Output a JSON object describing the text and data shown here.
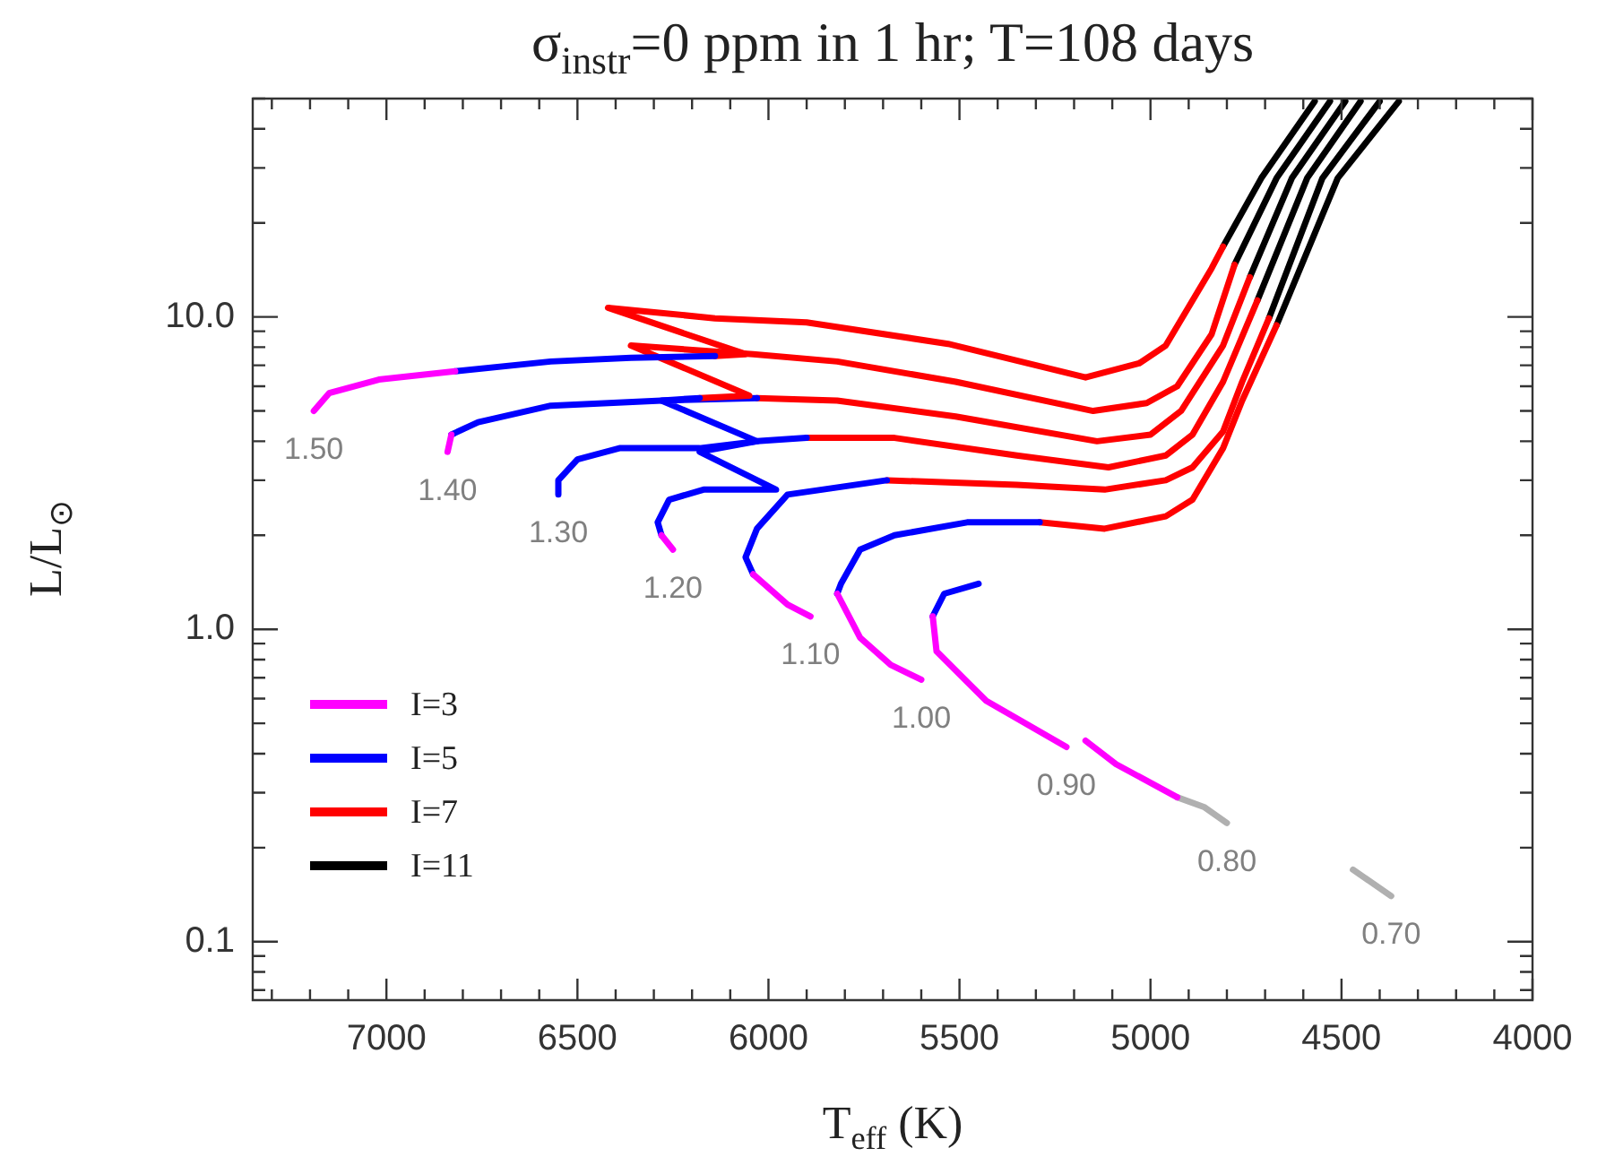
{
  "chart_data": {
    "type": "line",
    "title": "σ$_{instr}$=0 ppm in 1 hr; T=108 days",
    "xlabel": "T$_{eff}$ (K)",
    "ylabel": "L/L$_{⊙}$",
    "log": "y",
    "marker": "none",
    "legend": "bottom left",
    "xlim": [
      7350,
      4000
    ],
    "ylim": [
      0.065,
      50
    ],
    "xticks": [
      {
        "value": 7300,
        "label": null
      },
      {
        "value": 7200,
        "label": null
      },
      {
        "value": 7100,
        "label": null
      },
      7000,
      {
        "value": 6900,
        "label": null
      },
      {
        "value": 6800,
        "label": null
      },
      {
        "value": 6700,
        "label": null
      },
      {
        "value": 6600,
        "label": null
      },
      6500,
      {
        "value": 6400,
        "label": null
      },
      {
        "value": 6300,
        "label": null
      },
      {
        "value": 6200,
        "label": null
      },
      {
        "value": 6100,
        "label": null
      },
      6000,
      {
        "value": 5900,
        "label": null
      },
      {
        "value": 5800,
        "label": null
      },
      {
        "value": 5700,
        "label": null
      },
      {
        "value": 5600,
        "label": null
      },
      5500,
      {
        "value": 5400,
        "label": null
      },
      {
        "value": 5300,
        "label": null
      },
      {
        "value": 5200,
        "label": null
      },
      {
        "value": 5100,
        "label": null
      },
      5000,
      {
        "value": 4900,
        "label": null
      },
      {
        "value": 4800,
        "label": null
      },
      {
        "value": 4700,
        "label": null
      },
      {
        "value": 4600,
        "label": null
      },
      4500,
      {
        "value": 4400,
        "label": null
      },
      {
        "value": 4300,
        "label": null
      },
      {
        "value": 4200,
        "label": null
      },
      {
        "value": 4100,
        "label": null
      },
      4000
    ],
    "yticks": [
      {
        "value": 0.07,
        "label": null
      },
      {
        "value": 0.08,
        "label": null
      },
      {
        "value": 0.09,
        "label": null
      },
      0.1,
      {
        "value": 0.2,
        "label": null
      },
      {
        "value": 0.3,
        "label": null
      },
      {
        "value": 0.4,
        "label": null
      },
      {
        "value": 0.5,
        "label": null
      },
      {
        "value": 0.6,
        "label": null
      },
      {
        "value": 0.7,
        "label": null
      },
      {
        "value": 0.8,
        "label": null
      },
      {
        "value": 0.9,
        "label": null
      },
      {
        "value": 1,
        "label": "1.0"
      },
      {
        "value": 2,
        "label": null
      },
      {
        "value": 3,
        "label": null
      },
      {
        "value": 4,
        "label": null
      },
      {
        "value": 5,
        "label": null
      },
      {
        "value": 6,
        "label": null
      },
      {
        "value": 7,
        "label": null
      },
      {
        "value": 8,
        "label": null
      },
      {
        "value": 9,
        "label": null
      },
      {
        "value": 10,
        "label": "10.0"
      },
      {
        "value": 20,
        "label": null
      },
      {
        "value": 30,
        "label": null
      },
      {
        "value": 40,
        "label": null
      },
      {
        "value": 50,
        "label": null
      }
    ],
    "series": [
      {
        "name": "I=3",
        "color": "#ff00ff",
        "x": [
          7190,
          7150,
          7020,
          6820
        ],
        "values": [
          5.0,
          5.7,
          6.3,
          6.7
        ]
      },
      {
        "name": "I=5",
        "color": "#0000ff",
        "x": [
          6820,
          6570,
          6360,
          6140
        ],
        "values": [
          6.7,
          7.2,
          7.4,
          7.5
        ]
      },
      {
        "name": "I=7",
        "color": "#ff0000",
        "x": [
          6140,
          6060,
          6420,
          6140,
          5900,
          5530,
          5170,
          5030,
          4960,
          4840,
          4810
        ],
        "values": [
          7.5,
          7.6,
          10.7,
          9.9,
          9.6,
          8.2,
          6.4,
          7.1,
          8.1,
          14.3,
          16.8
        ]
      },
      {
        "name": "I=11",
        "color": "#000000",
        "x": [
          4810,
          4710,
          4570
        ],
        "values": [
          16.8,
          27.8,
          49
        ]
      },
      {
        "color": "#ff00ff",
        "x": [
          6840,
          6830
        ],
        "values": [
          3.7,
          4.2
        ]
      },
      {
        "color": "#0000ff",
        "x": [
          6830,
          6760,
          6570,
          6280,
          6180
        ],
        "values": [
          4.2,
          4.6,
          5.2,
          5.4,
          5.5
        ]
      },
      {
        "color": "#ff0000",
        "x": [
          6180,
          6050,
          6360,
          6040,
          5820,
          5510,
          5150,
          5010,
          4930,
          4840,
          4780
        ],
        "values": [
          5.5,
          5.6,
          8.1,
          7.6,
          7.2,
          6.2,
          5.0,
          5.3,
          6.0,
          8.8,
          14.7
        ]
      },
      {
        "color": "#000000",
        "x": [
          4780,
          4670,
          4530
        ],
        "values": [
          14.7,
          27.8,
          49
        ]
      },
      {
        "color": "#0000ff",
        "x": [
          6550,
          6550,
          6500,
          6390,
          6180,
          6030,
          6280,
          6030
        ],
        "values": [
          2.7,
          3.0,
          3.5,
          3.8,
          3.8,
          4.0,
          5.4,
          5.5
        ]
      },
      {
        "color": "#ff0000",
        "x": [
          6030,
          5820,
          5510,
          5140,
          5000,
          4920,
          4810,
          4740
        ],
        "values": [
          5.5,
          5.4,
          4.8,
          4.0,
          4.2,
          5.0,
          8.1,
          13.4
        ]
      },
      {
        "color": "#000000",
        "x": [
          4740,
          4630,
          4490
        ],
        "values": [
          13.4,
          27.8,
          49
        ]
      },
      {
        "color": "#ff00ff",
        "x": [
          6250,
          6280
        ],
        "values": [
          1.8,
          2.0
        ]
      },
      {
        "color": "#0000ff",
        "x": [
          6280,
          6290,
          6260,
          6170,
          5980,
          6180,
          6030,
          5900
        ],
        "values": [
          2.0,
          2.2,
          2.6,
          2.8,
          2.8,
          3.7,
          4.0,
          4.1
        ]
      },
      {
        "color": "#ff0000",
        "x": [
          5900,
          5670,
          5350,
          5110,
          4960,
          4890,
          4810,
          4720
        ],
        "values": [
          4.1,
          4.1,
          3.6,
          3.3,
          3.6,
          4.2,
          6.2,
          11.3
        ]
      },
      {
        "color": "#000000",
        "x": [
          4720,
          4590,
          4450
        ],
        "values": [
          11.3,
          27.8,
          49
        ]
      },
      {
        "color": "#ff00ff",
        "x": [
          5890,
          5950,
          6040
        ],
        "values": [
          1.1,
          1.2,
          1.5
        ]
      },
      {
        "color": "#0000ff",
        "x": [
          6040,
          6060,
          6030,
          5950,
          5860,
          5690
        ],
        "values": [
          1.5,
          1.7,
          2.1,
          2.7,
          2.8,
          3.0
        ]
      },
      {
        "color": "#ff0000",
        "x": [
          5690,
          5350,
          5120,
          4960,
          4890,
          4810,
          4760,
          4690
        ],
        "values": [
          3.0,
          2.9,
          2.8,
          3.0,
          3.3,
          4.3,
          6.2,
          9.9
        ]
      },
      {
        "color": "#000000",
        "x": [
          4690,
          4550,
          4400
        ],
        "values": [
          9.9,
          27.8,
          49
        ]
      },
      {
        "color": "#ff00ff",
        "x": [
          5600,
          5680,
          5760,
          5820
        ],
        "values": [
          0.69,
          0.77,
          0.94,
          1.3
        ]
      },
      {
        "color": "#0000ff",
        "x": [
          5820,
          5810,
          5760,
          5670,
          5480,
          5290
        ],
        "values": [
          1.3,
          1.4,
          1.8,
          2.0,
          2.2,
          2.2
        ]
      },
      {
        "color": "#ff0000",
        "x": [
          5290,
          5120,
          4960,
          4890,
          4810,
          4760,
          4670
        ],
        "values": [
          2.2,
          2.1,
          2.3,
          2.6,
          3.8,
          5.4,
          9.4
        ]
      },
      {
        "color": "#000000",
        "x": [
          4670,
          4510,
          4350
        ],
        "values": [
          9.4,
          27.8,
          49
        ]
      },
      {
        "color": "#ff00ff",
        "x": [
          5220,
          5430,
          5560,
          5570
        ],
        "values": [
          0.42,
          0.59,
          0.85,
          1.1
        ]
      },
      {
        "color": "#0000ff",
        "x": [
          5570,
          5540,
          5450
        ],
        "values": [
          1.1,
          1.3,
          1.4
        ]
      },
      {
        "color": "#ff00ff",
        "x": [
          5170,
          5090,
          4930
        ],
        "values": [
          0.44,
          0.37,
          0.29
        ]
      },
      {
        "color": "#b0b0b0",
        "x": [
          4930,
          4860,
          4800
        ],
        "values": [
          0.29,
          0.27,
          0.24
        ]
      },
      {
        "color": "#b0b0b0",
        "x": [
          4470,
          4370
        ],
        "values": [
          0.17,
          0.14
        ]
      }
    ],
    "annotations": [
      {
        "text": "1.50",
        "x": 7190,
        "y": 5.0
      },
      {
        "text": "1.40",
        "x": 6840,
        "y": 3.7
      },
      {
        "text": "1.30",
        "x": 6550,
        "y": 2.7
      },
      {
        "text": "1.20",
        "x": 6250,
        "y": 1.8
      },
      {
        "text": "1.10",
        "x": 5890,
        "y": 1.1
      },
      {
        "text": "1.00",
        "x": 5600,
        "y": 0.69
      },
      {
        "text": "0.90",
        "x": 5220,
        "y": 0.42
      },
      {
        "text": "0.80",
        "x": 4800,
        "y": 0.24
      },
      {
        "text": "0.70",
        "x": 4370,
        "y": 0.14
      }
    ]
  }
}
